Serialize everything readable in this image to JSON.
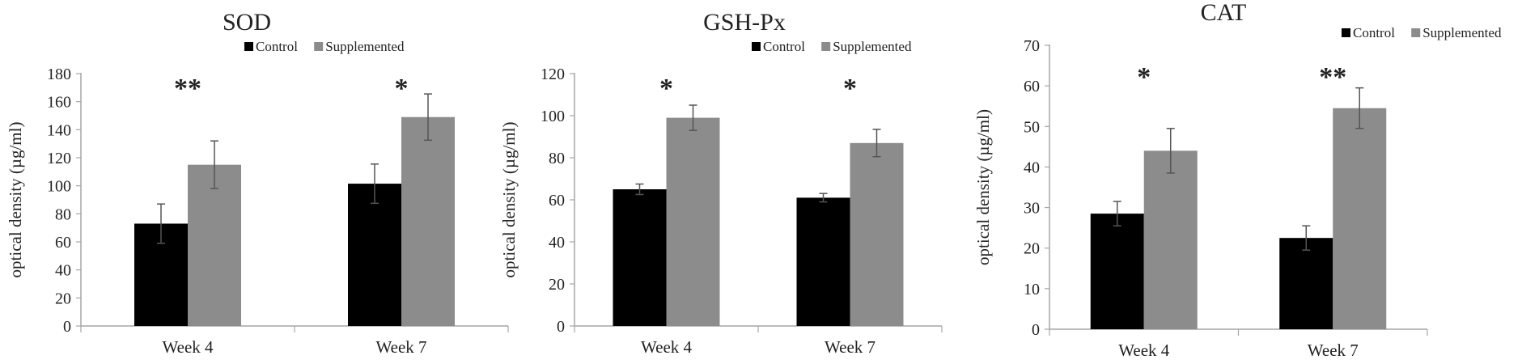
{
  "chart_data": [
    {
      "type": "bar",
      "title": "SOD",
      "ylabel": "optical density (µg/ml)",
      "xlabel": "",
      "ylim": [
        0,
        180
      ],
      "yticks": [
        0,
        20,
        40,
        60,
        80,
        100,
        120,
        140,
        160,
        180
      ],
      "categories": [
        "Week 4",
        "Week 7"
      ],
      "series": [
        {
          "name": "Control",
          "color": "#000000",
          "values": [
            73,
            101.5
          ],
          "errors": [
            14,
            14
          ]
        },
        {
          "name": "Supplemented",
          "color": "#8c8c8c",
          "values": [
            115,
            149
          ],
          "errors": [
            17,
            16.5
          ]
        }
      ],
      "significance": [
        "**",
        "*"
      ],
      "legend": "top"
    },
    {
      "type": "bar",
      "title": "GSH-Px",
      "ylabel": "optical density (µg/ml)",
      "xlabel": "",
      "ylim": [
        0,
        120
      ],
      "yticks": [
        0,
        20,
        40,
        60,
        80,
        100,
        120
      ],
      "categories": [
        "Week 4",
        "Week 7"
      ],
      "series": [
        {
          "name": "Control",
          "color": "#000000",
          "values": [
            65,
            61
          ],
          "errors": [
            2.5,
            2
          ]
        },
        {
          "name": "Supplemented",
          "color": "#8c8c8c",
          "values": [
            99,
            87
          ],
          "errors": [
            6,
            6.5
          ]
        }
      ],
      "significance": [
        "*",
        "*"
      ],
      "legend": "top"
    },
    {
      "type": "bar",
      "title": "CAT",
      "ylabel": "optical density (µg/ml)",
      "xlabel": "",
      "ylim": [
        0,
        70
      ],
      "yticks": [
        0,
        10,
        20,
        30,
        40,
        50,
        60,
        70
      ],
      "categories": [
        "Week 4",
        "Week 7"
      ],
      "series": [
        {
          "name": "Control",
          "color": "#000000",
          "values": [
            28.5,
            22.5
          ],
          "errors": [
            3,
            3
          ]
        },
        {
          "name": "Supplemented",
          "color": "#8c8c8c",
          "values": [
            44,
            54.5
          ],
          "errors": [
            5.5,
            5
          ]
        }
      ],
      "significance": [
        "*",
        "**"
      ],
      "legend": "top"
    }
  ]
}
